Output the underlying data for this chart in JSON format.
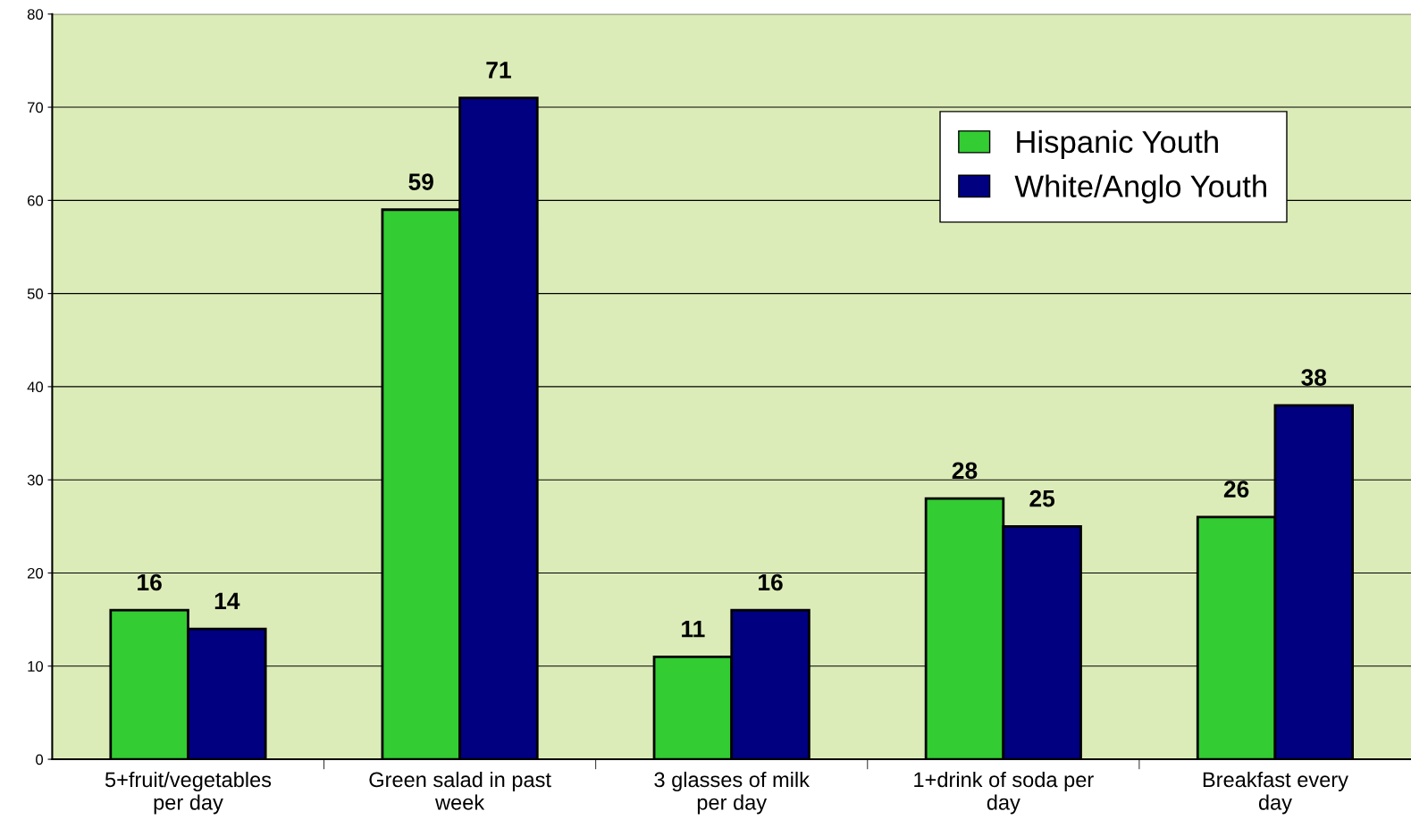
{
  "chart_data": {
    "type": "bar",
    "categories": [
      "5+fruit/vegetables\nper day",
      "Green salad in past\nweek",
      "3 glasses of milk\nper day",
      "1+drink of soda per\nday",
      "Breakfast every\nday"
    ],
    "series": [
      {
        "name": "Hispanic Youth",
        "color": "#33cc33",
        "values": [
          16,
          59,
          11,
          28,
          26
        ]
      },
      {
        "name": "White/Anglo Youth",
        "color": "#000080",
        "values": [
          14,
          71,
          16,
          25,
          38
        ]
      }
    ],
    "ylim": [
      0,
      80
    ],
    "yticks": [
      0,
      10,
      20,
      30,
      40,
      50,
      60,
      70,
      80
    ],
    "grid": "y",
    "legend": "top right",
    "data_labels": true
  }
}
